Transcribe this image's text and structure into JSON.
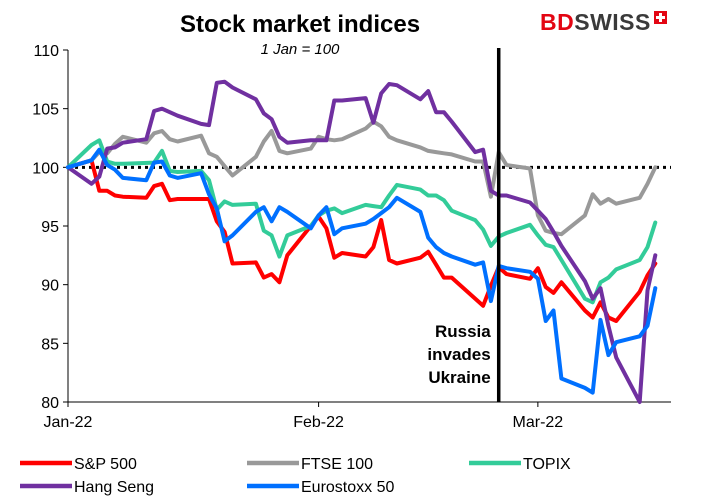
{
  "chart_data": {
    "type": "line",
    "title": "Stock market indices",
    "subtitle": "1 Jan = 100",
    "ylim": [
      80,
      110
    ],
    "yticks": [
      80,
      85,
      90,
      95,
      100,
      105,
      110
    ],
    "ytick_labels": [
      "80",
      "85",
      "90",
      "95",
      "100",
      "105",
      "110"
    ],
    "x_range": [
      "2021-12-31",
      "2022-03-18"
    ],
    "xticks": [
      {
        "date": "2021-12-31",
        "label": "Jan-22"
      },
      {
        "date": "2022-02-01",
        "label": "Feb-22"
      },
      {
        "date": "2022-03-01",
        "label": "Mar-22"
      }
    ],
    "reference_line": {
      "value": 100,
      "style": "dotted",
      "color": "#000000"
    },
    "annotation": {
      "date": "2022-02-24",
      "text": [
        "Russia",
        "invades",
        "Ukraine"
      ],
      "color": "#000000"
    },
    "legend_position": "bottom",
    "series": [
      {
        "name": "S&P 500",
        "color": "#ff0000",
        "points": [
          [
            "2021-12-31",
            100.0
          ],
          [
            "2022-01-03",
            100.6
          ],
          [
            "2022-01-04",
            98.0
          ],
          [
            "2022-01-05",
            98.0
          ],
          [
            "2022-01-06",
            97.6
          ],
          [
            "2022-01-07",
            97.5
          ],
          [
            "2022-01-10",
            97.4
          ],
          [
            "2022-01-11",
            98.4
          ],
          [
            "2022-01-12",
            98.6
          ],
          [
            "2022-01-13",
            97.2
          ],
          [
            "2022-01-14",
            97.3
          ],
          [
            "2022-01-18",
            97.3
          ],
          [
            "2022-01-19",
            95.4
          ],
          [
            "2022-01-20",
            94.5
          ],
          [
            "2022-01-21",
            91.8
          ],
          [
            "2022-01-24",
            91.9
          ],
          [
            "2022-01-25",
            90.6
          ],
          [
            "2022-01-26",
            90.9
          ],
          [
            "2022-01-27",
            90.2
          ],
          [
            "2022-01-28",
            92.5
          ],
          [
            "2022-01-31",
            95.0
          ],
          [
            "2022-02-01",
            95.8
          ],
          [
            "2022-02-02",
            94.8
          ],
          [
            "2022-02-03",
            92.3
          ],
          [
            "2022-02-04",
            92.7
          ],
          [
            "2022-02-07",
            92.4
          ],
          [
            "2022-02-08",
            93.2
          ],
          [
            "2022-02-09",
            95.5
          ],
          [
            "2022-02-10",
            92.1
          ],
          [
            "2022-02-11",
            91.8
          ],
          [
            "2022-02-14",
            92.3
          ],
          [
            "2022-02-15",
            92.8
          ],
          [
            "2022-02-16",
            91.7
          ],
          [
            "2022-02-17",
            90.6
          ],
          [
            "2022-02-18",
            90.6
          ],
          [
            "2022-02-22",
            88.2
          ],
          [
            "2022-02-23",
            89.9
          ],
          [
            "2022-02-24",
            91.5
          ],
          [
            "2022-02-25",
            90.9
          ],
          [
            "2022-02-28",
            90.5
          ],
          [
            "2022-03-01",
            91.4
          ],
          [
            "2022-03-02",
            89.8
          ],
          [
            "2022-03-03",
            89.3
          ],
          [
            "2022-03-04",
            90.2
          ],
          [
            "2022-03-07",
            87.8
          ],
          [
            "2022-03-08",
            87.2
          ],
          [
            "2022-03-09",
            88.5
          ],
          [
            "2022-03-10",
            87.2
          ],
          [
            "2022-03-11",
            86.9
          ],
          [
            "2022-03-14",
            89.4
          ],
          [
            "2022-03-15",
            90.8
          ],
          [
            "2022-03-16",
            91.8
          ]
        ]
      },
      {
        "name": "FTSE 100",
        "color": "#999999",
        "points": [
          [
            "2021-12-31",
            100.0
          ],
          [
            "2022-01-03",
            100.6
          ],
          [
            "2022-01-04",
            101.3
          ],
          [
            "2022-01-05",
            101.2
          ],
          [
            "2022-01-06",
            102.0
          ],
          [
            "2022-01-07",
            102.6
          ],
          [
            "2022-01-10",
            102.1
          ],
          [
            "2022-01-11",
            102.9
          ],
          [
            "2022-01-12",
            103.1
          ],
          [
            "2022-01-13",
            102.4
          ],
          [
            "2022-01-14",
            102.2
          ],
          [
            "2022-01-17",
            102.7
          ],
          [
            "2022-01-18",
            101.2
          ],
          [
            "2022-01-19",
            100.9
          ],
          [
            "2022-01-20",
            100.1
          ],
          [
            "2022-01-21",
            99.3
          ],
          [
            "2022-01-24",
            100.9
          ],
          [
            "2022-01-25",
            102.2
          ],
          [
            "2022-01-26",
            103.1
          ],
          [
            "2022-01-27",
            101.4
          ],
          [
            "2022-01-28",
            101.2
          ],
          [
            "2022-01-31",
            101.6
          ],
          [
            "2022-02-01",
            102.6
          ],
          [
            "2022-02-02",
            102.4
          ],
          [
            "2022-02-03",
            102.3
          ],
          [
            "2022-02-04",
            102.4
          ],
          [
            "2022-02-07",
            103.3
          ],
          [
            "2022-02-08",
            103.9
          ],
          [
            "2022-02-09",
            103.5
          ],
          [
            "2022-02-10",
            102.6
          ],
          [
            "2022-02-11",
            102.3
          ],
          [
            "2022-02-14",
            101.7
          ],
          [
            "2022-02-15",
            101.4
          ],
          [
            "2022-02-16",
            101.3
          ],
          [
            "2022-02-17",
            101.2
          ],
          [
            "2022-02-18",
            101.1
          ],
          [
            "2022-02-21",
            100.5
          ],
          [
            "2022-02-22",
            100.5
          ],
          [
            "2022-02-23",
            97.5
          ],
          [
            "2022-02-24",
            101.3
          ],
          [
            "2022-02-25",
            100.2
          ],
          [
            "2022-02-28",
            99.9
          ],
          [
            "2022-03-01",
            95.9
          ],
          [
            "2022-03-02",
            94.6
          ],
          [
            "2022-03-03",
            94.4
          ],
          [
            "2022-03-04",
            94.3
          ],
          [
            "2022-03-07",
            95.9
          ],
          [
            "2022-03-08",
            97.7
          ],
          [
            "2022-03-09",
            96.9
          ],
          [
            "2022-03-10",
            97.3
          ],
          [
            "2022-03-11",
            96.9
          ],
          [
            "2022-03-14",
            97.4
          ],
          [
            "2022-03-15",
            98.6
          ],
          [
            "2022-03-16",
            100.0
          ]
        ]
      },
      {
        "name": "TOPIX",
        "color": "#33cc99",
        "points": [
          [
            "2021-12-31",
            100.0
          ],
          [
            "2022-01-03",
            101.9
          ],
          [
            "2022-01-04",
            102.3
          ],
          [
            "2022-01-05",
            100.5
          ],
          [
            "2022-01-06",
            100.3
          ],
          [
            "2022-01-07",
            100.3
          ],
          [
            "2022-01-11",
            100.4
          ],
          [
            "2022-01-12",
            101.4
          ],
          [
            "2022-01-13",
            99.7
          ],
          [
            "2022-01-14",
            99.6
          ],
          [
            "2022-01-17",
            99.7
          ],
          [
            "2022-01-18",
            98.9
          ],
          [
            "2022-01-19",
            96.4
          ],
          [
            "2022-01-20",
            97.1
          ],
          [
            "2022-01-21",
            96.8
          ],
          [
            "2022-01-24",
            96.9
          ],
          [
            "2022-01-25",
            94.6
          ],
          [
            "2022-01-26",
            94.2
          ],
          [
            "2022-01-27",
            92.4
          ],
          [
            "2022-01-28",
            94.2
          ],
          [
            "2022-01-31",
            95.0
          ],
          [
            "2022-02-01",
            95.9
          ],
          [
            "2022-02-02",
            96.3
          ],
          [
            "2022-02-03",
            96.5
          ],
          [
            "2022-02-04",
            96.1
          ],
          [
            "2022-02-07",
            96.8
          ],
          [
            "2022-02-08",
            96.7
          ],
          [
            "2022-02-09",
            96.6
          ],
          [
            "2022-02-10",
            97.6
          ],
          [
            "2022-02-11",
            98.5
          ],
          [
            "2022-02-14",
            98.1
          ],
          [
            "2022-02-15",
            97.6
          ],
          [
            "2022-02-16",
            97.6
          ],
          [
            "2022-02-17",
            97.2
          ],
          [
            "2022-02-18",
            96.3
          ],
          [
            "2022-02-21",
            95.5
          ],
          [
            "2022-02-22",
            94.7
          ],
          [
            "2022-02-23",
            93.3
          ],
          [
            "2022-02-24",
            94.1
          ],
          [
            "2022-02-25",
            94.4
          ],
          [
            "2022-02-28",
            95.1
          ],
          [
            "2022-03-01",
            94.2
          ],
          [
            "2022-03-02",
            93.4
          ],
          [
            "2022-03-03",
            93.2
          ],
          [
            "2022-03-04",
            92.1
          ],
          [
            "2022-03-07",
            88.8
          ],
          [
            "2022-03-08",
            88.5
          ],
          [
            "2022-03-09",
            90.2
          ],
          [
            "2022-03-10",
            90.6
          ],
          [
            "2022-03-11",
            91.3
          ],
          [
            "2022-03-14",
            92.1
          ],
          [
            "2022-03-15",
            93.2
          ],
          [
            "2022-03-16",
            95.3
          ]
        ]
      },
      {
        "name": "Hang Seng",
        "color": "#7030a0",
        "points": [
          [
            "2021-12-31",
            100.0
          ],
          [
            "2022-01-03",
            98.6
          ],
          [
            "2022-01-04",
            99.2
          ],
          [
            "2022-01-05",
            101.6
          ],
          [
            "2022-01-06",
            101.7
          ],
          [
            "2022-01-07",
            102.1
          ],
          [
            "2022-01-10",
            102.4
          ],
          [
            "2022-01-11",
            104.8
          ],
          [
            "2022-01-12",
            105.0
          ],
          [
            "2022-01-13",
            104.7
          ],
          [
            "2022-01-14",
            104.4
          ],
          [
            "2022-01-17",
            103.7
          ],
          [
            "2022-01-18",
            103.6
          ],
          [
            "2022-01-19",
            107.2
          ],
          [
            "2022-01-20",
            107.3
          ],
          [
            "2022-01-21",
            106.8
          ],
          [
            "2022-01-24",
            105.8
          ],
          [
            "2022-01-25",
            104.6
          ],
          [
            "2022-01-26",
            104.1
          ],
          [
            "2022-01-27",
            102.6
          ],
          [
            "2022-01-28",
            102.1
          ],
          [
            "2022-01-31",
            102.3
          ],
          [
            "2022-02-01",
            102.3
          ],
          [
            "2022-02-02",
            102.3
          ],
          [
            "2022-02-03",
            105.7
          ],
          [
            "2022-02-04",
            105.7
          ],
          [
            "2022-02-07",
            105.9
          ],
          [
            "2022-02-08",
            103.8
          ],
          [
            "2022-02-09",
            106.3
          ],
          [
            "2022-02-10",
            107.1
          ],
          [
            "2022-02-11",
            107.0
          ],
          [
            "2022-02-14",
            105.8
          ],
          [
            "2022-02-15",
            106.5
          ],
          [
            "2022-02-16",
            104.7
          ],
          [
            "2022-02-17",
            104.7
          ],
          [
            "2022-02-18",
            103.9
          ],
          [
            "2022-02-21",
            101.3
          ],
          [
            "2022-02-22",
            101.5
          ],
          [
            "2022-02-23",
            98.0
          ],
          [
            "2022-02-24",
            97.6
          ],
          [
            "2022-02-25",
            97.6
          ],
          [
            "2022-02-28",
            97.0
          ],
          [
            "2022-03-01",
            96.3
          ],
          [
            "2022-03-02",
            95.6
          ],
          [
            "2022-03-03",
            94.5
          ],
          [
            "2022-03-04",
            93.3
          ],
          [
            "2022-03-07",
            90.3
          ],
          [
            "2022-03-08",
            88.8
          ],
          [
            "2022-03-09",
            89.7
          ],
          [
            "2022-03-10",
            86.5
          ],
          [
            "2022-03-11",
            83.8
          ],
          [
            "2022-03-14",
            80.0
          ],
          [
            "2022-03-15",
            89.5
          ],
          [
            "2022-03-16",
            92.5
          ]
        ]
      },
      {
        "name": "Eurostoxx 50",
        "color": "#0070ff",
        "points": [
          [
            "2021-12-31",
            100.0
          ],
          [
            "2022-01-03",
            100.6
          ],
          [
            "2022-01-04",
            101.5
          ],
          [
            "2022-01-05",
            100.2
          ],
          [
            "2022-01-06",
            99.8
          ],
          [
            "2022-01-07",
            99.1
          ],
          [
            "2022-01-10",
            98.9
          ],
          [
            "2022-01-11",
            100.4
          ],
          [
            "2022-01-12",
            100.5
          ],
          [
            "2022-01-13",
            99.3
          ],
          [
            "2022-01-14",
            99.1
          ],
          [
            "2022-01-17",
            99.5
          ],
          [
            "2022-01-18",
            97.7
          ],
          [
            "2022-01-19",
            96.5
          ],
          [
            "2022-01-20",
            93.7
          ],
          [
            "2022-01-21",
            94.2
          ],
          [
            "2022-01-24",
            96.2
          ],
          [
            "2022-01-25",
            96.6
          ],
          [
            "2022-01-26",
            95.4
          ],
          [
            "2022-01-27",
            96.6
          ],
          [
            "2022-01-28",
            96.2
          ],
          [
            "2022-01-31",
            94.8
          ],
          [
            "2022-02-01",
            95.9
          ],
          [
            "2022-02-02",
            96.6
          ],
          [
            "2022-02-03",
            94.3
          ],
          [
            "2022-02-04",
            94.8
          ],
          [
            "2022-02-07",
            95.2
          ],
          [
            "2022-02-08",
            95.6
          ],
          [
            "2022-02-09",
            96.1
          ],
          [
            "2022-02-10",
            96.6
          ],
          [
            "2022-02-11",
            97.4
          ],
          [
            "2022-02-14",
            96.2
          ],
          [
            "2022-02-15",
            94.0
          ],
          [
            "2022-02-16",
            93.2
          ],
          [
            "2022-02-17",
            92.7
          ],
          [
            "2022-02-18",
            92.4
          ],
          [
            "2022-02-21",
            91.7
          ],
          [
            "2022-02-22",
            91.9
          ],
          [
            "2022-02-23",
            88.6
          ],
          [
            "2022-02-24",
            91.6
          ],
          [
            "2022-02-25",
            91.4
          ],
          [
            "2022-02-28",
            91.1
          ],
          [
            "2022-03-01",
            90.5
          ],
          [
            "2022-03-02",
            86.9
          ],
          [
            "2022-03-03",
            87.8
          ],
          [
            "2022-03-04",
            82.0
          ],
          [
            "2022-03-07",
            81.2
          ],
          [
            "2022-03-08",
            80.8
          ],
          [
            "2022-03-09",
            87.0
          ],
          [
            "2022-03-10",
            84.0
          ],
          [
            "2022-03-11",
            85.1
          ],
          [
            "2022-03-14",
            85.6
          ],
          [
            "2022-03-15",
            86.5
          ],
          [
            "2022-03-16",
            89.7
          ]
        ]
      }
    ]
  },
  "logo": {
    "text_bd": "BD",
    "text_swiss": "SWISS",
    "colors": {
      "bd": "#e30613",
      "swiss": "#3a3a3a"
    }
  }
}
